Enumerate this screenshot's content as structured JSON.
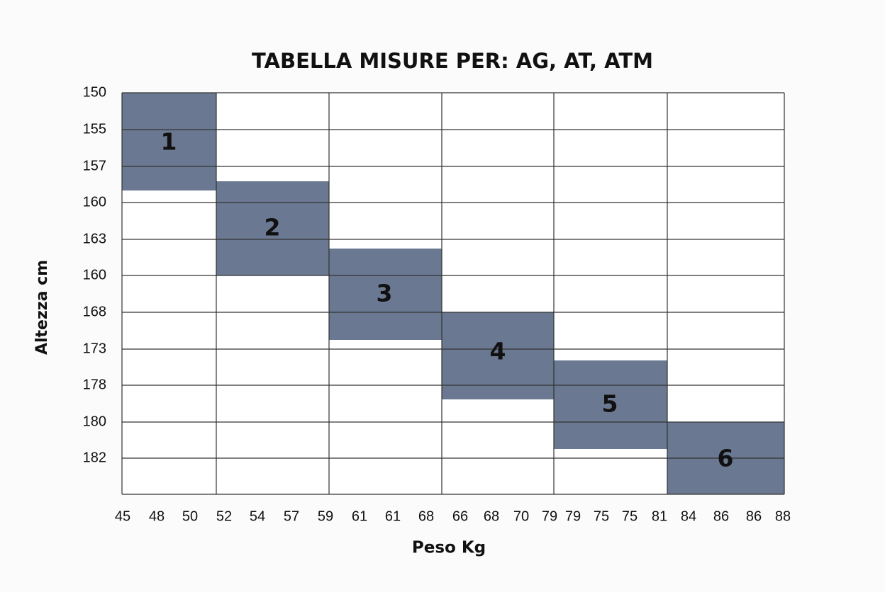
{
  "title": "TABELLA MISURE PER: AG, AT, ATM",
  "y_axis_label": "Altezza cm",
  "x_axis_label": "Peso Kg",
  "y_labels": [
    "150",
    "155",
    "157",
    "160",
    "163",
    "160",
    "168",
    "173",
    "178",
    "180",
    "182"
  ],
  "x_labels": [
    "45",
    "48",
    "50",
    "52",
    "54",
    "57",
    "59",
    "61",
    "61",
    "68",
    "66",
    "68",
    "70",
    "79",
    "79",
    "75",
    "75",
    "81",
    "84",
    "86",
    "86",
    "88"
  ],
  "sizes": [
    "1",
    "2",
    "3",
    "4",
    "5",
    "6"
  ]
}
